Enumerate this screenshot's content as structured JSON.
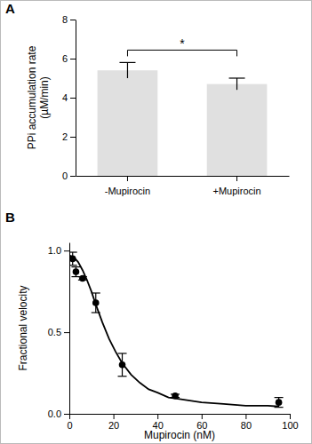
{
  "chart_data": [
    {
      "type": "bar",
      "title": "A",
      "categories": [
        "-Mupirocin",
        "+Mupirocin"
      ],
      "values": [
        5.4,
        4.7
      ],
      "errors": [
        0.4,
        0.3
      ],
      "color": "#e0e0e0",
      "ylabel": "PPi accumulation rate\n(µM/min)",
      "ylim": [
        0,
        8
      ],
      "yticks": [
        0,
        2,
        4,
        6,
        8
      ],
      "annotations": [
        "*"
      ]
    },
    {
      "type": "scatter",
      "title": "B",
      "xlabel": "Mupirocin (nM)",
      "ylabel": "Fractional velocity",
      "xlim": [
        0,
        100
      ],
      "xticks": [
        0,
        20,
        40,
        60,
        80,
        100
      ],
      "ylim": [
        0,
        1.05
      ],
      "yticks": [
        {
          "value": 0,
          "label": "0.0"
        },
        {
          "value": 0.5,
          "label": "0.5"
        },
        {
          "value": 1,
          "label": "1.0"
        }
      ],
      "series": [
        {
          "type": "scatter",
          "marker": "circle",
          "color": "#000000",
          "x": [
            1.5,
            3,
            6,
            12,
            24,
            48,
            95
          ],
          "values": [
            0.95,
            0.87,
            0.83,
            0.68,
            0.3,
            0.11,
            0.07
          ],
          "errors": [
            0.04,
            0.03,
            0.01,
            0.06,
            0.07,
            0.01,
            0.03
          ]
        },
        {
          "type": "line",
          "line_style": "solid",
          "color": "#000000",
          "x": [
            0,
            2,
            4,
            6,
            8,
            10,
            12,
            15,
            18,
            21,
            24,
            28,
            32,
            36,
            40,
            45,
            50,
            60,
            70,
            80,
            90,
            95
          ],
          "values": [
            0.97,
            0.96,
            0.93,
            0.88,
            0.82,
            0.75,
            0.67,
            0.56,
            0.46,
            0.38,
            0.31,
            0.24,
            0.19,
            0.15,
            0.13,
            0.1,
            0.09,
            0.07,
            0.06,
            0.05,
            0.05,
            0.045
          ]
        }
      ]
    }
  ]
}
